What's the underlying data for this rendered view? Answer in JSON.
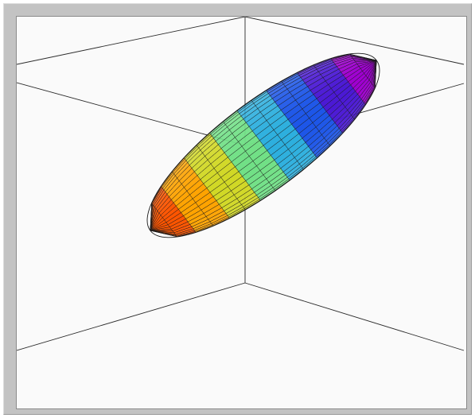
{
  "figure": {
    "kind": "3d-surface-plot",
    "shape": "ellipsoid",
    "colormap": "jet",
    "colormap_colors": [
      "#ff3300",
      "#ff7a00",
      "#ffd000",
      "#9fe050",
      "#3fe0c0",
      "#1a7aff",
      "#2030d0",
      "#7a00d8",
      "#c800c8"
    ],
    "edge_color": "#1a1a1a",
    "axes_box_lines": true,
    "grid": false,
    "frame_color": "#c3c3c3",
    "background_color": "#fafafa"
  }
}
